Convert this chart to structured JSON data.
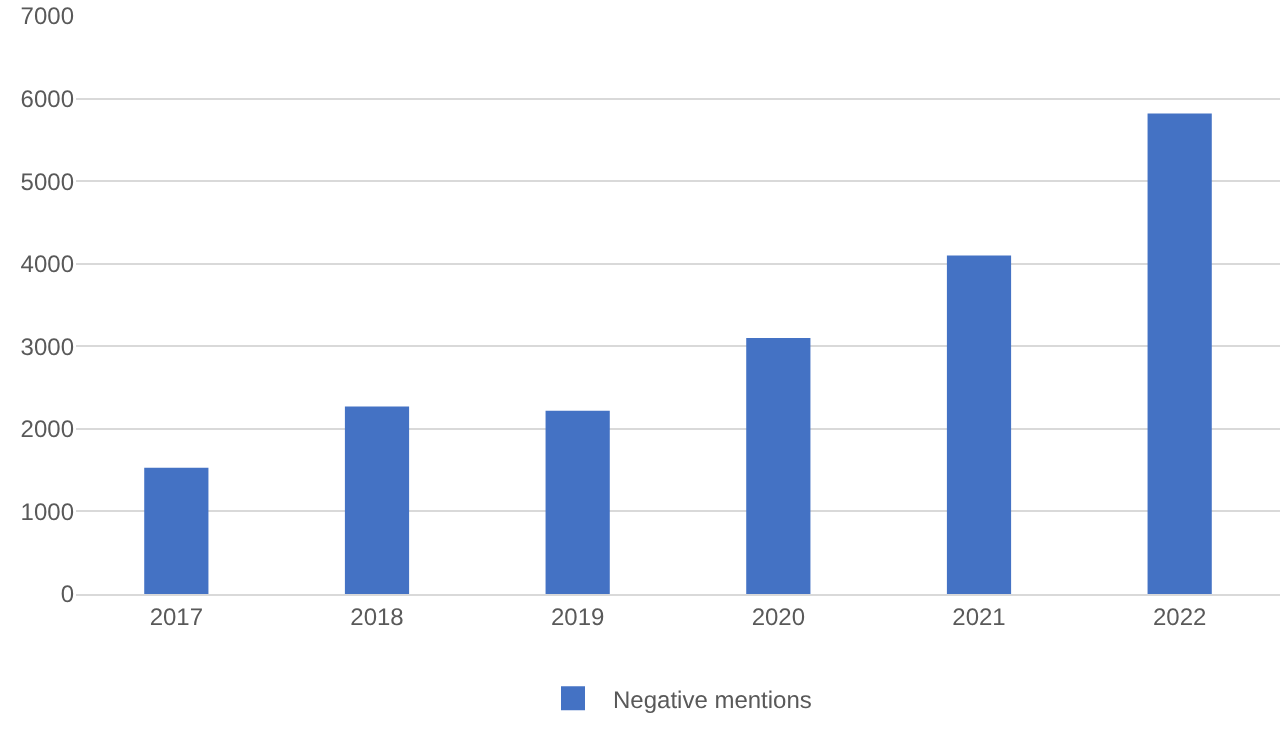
{
  "chart_data": {
    "type": "bar",
    "categories": [
      "2017",
      "2018",
      "2019",
      "2020",
      "2021",
      "2022"
    ],
    "series": [
      {
        "name": "Negative mentions",
        "color": "#4472c4",
        "values": [
          1530,
          2270,
          2220,
          3100,
          4100,
          5820
        ]
      }
    ],
    "ylim": [
      0,
      7000
    ],
    "yticks": [
      0,
      1000,
      2000,
      3000,
      4000,
      5000,
      6000,
      7000
    ],
    "grid": "y",
    "legend": "bottom"
  }
}
